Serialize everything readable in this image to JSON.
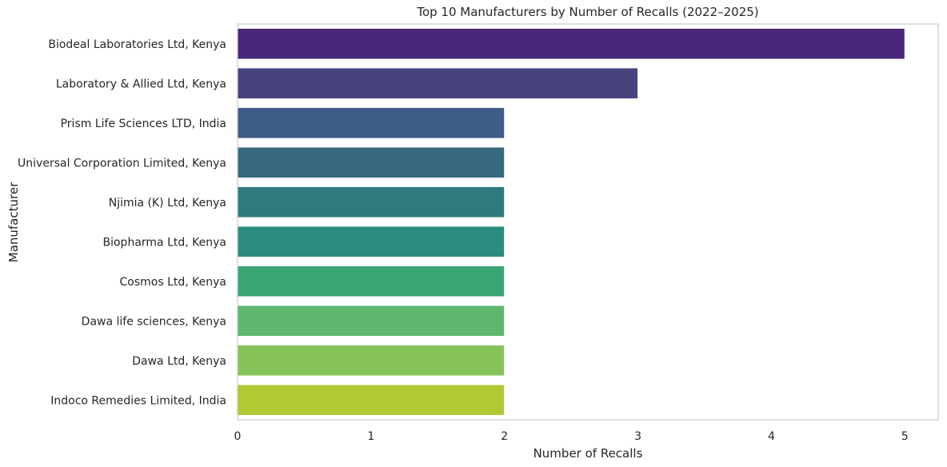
{
  "chart_data": {
    "type": "bar",
    "orientation": "horizontal",
    "title": "Top 10 Manufacturers by Number of Recalls (2022–2025)",
    "xlabel": "Number of Recalls",
    "ylabel": "Manufacturer",
    "xlim": [
      0,
      5.25
    ],
    "xticks": [
      "0",
      "1",
      "2",
      "3",
      "4",
      "5"
    ],
    "grid": false,
    "categories": [
      "Biodeal Laboratories Ltd, Kenya",
      "Laboratory & Allied Ltd, Kenya",
      "Prism Life Sciences LTD, India",
      "Universal Corporation Limited, Kenya",
      "Njimia (K) Ltd, Kenya",
      "Biopharma Ltd, Kenya",
      "Cosmos Ltd, Kenya",
      "Dawa life sciences, Kenya",
      "Dawa Ltd, Kenya",
      "Indoco Remedies Limited, India"
    ],
    "values": [
      5,
      3,
      2,
      2,
      2,
      2,
      2,
      2,
      2,
      2
    ],
    "colors": [
      "#482878",
      "#46437f",
      "#3f5b87",
      "#36697f",
      "#2e7a7e",
      "#2a8c7c",
      "#3aa574",
      "#5db86e",
      "#86c35a",
      "#b1c935"
    ]
  }
}
